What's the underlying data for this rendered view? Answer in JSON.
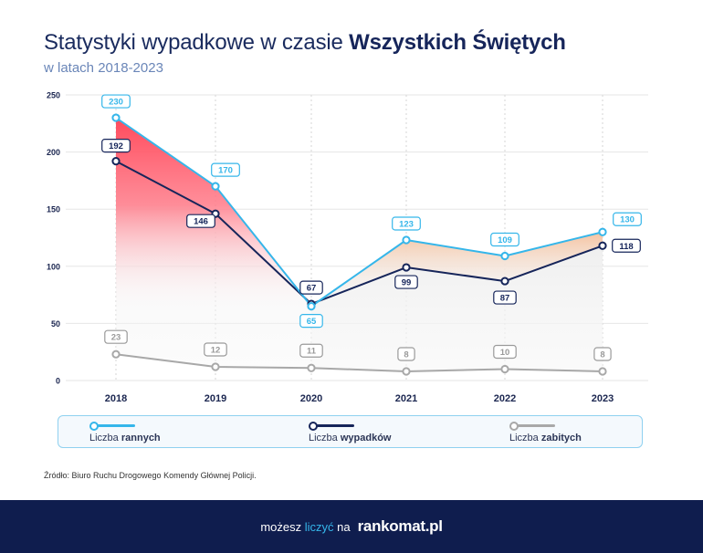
{
  "header": {
    "title_prefix": "Statystyki wypadkowe w czasie ",
    "title_bold": "Wszystkich Świętych",
    "subtitle": "w latach 2018-2023"
  },
  "chart_data": {
    "type": "line",
    "categories": [
      "2018",
      "2019",
      "2020",
      "2021",
      "2022",
      "2023"
    ],
    "ylim": [
      0,
      250
    ],
    "yticks": [
      "0",
      "50",
      "100",
      "150",
      "200",
      "250"
    ],
    "grid": true,
    "series": [
      {
        "name_prefix": "Liczba ",
        "name_bold": "rannych",
        "values": [
          230,
          170,
          65,
          123,
          109,
          130
        ],
        "color": "#35b6ea"
      },
      {
        "name_prefix": "Liczba ",
        "name_bold": "wypadków",
        "values": [
          192,
          146,
          67,
          99,
          87,
          118
        ],
        "color": "#16255a"
      },
      {
        "name_prefix": "Liczba ",
        "name_bold": "zabitych",
        "values": [
          23,
          12,
          11,
          8,
          10,
          8
        ],
        "color": "#a8a8a8"
      }
    ],
    "fill_colors": {
      "increase": "#ff4f60",
      "decrease_soft": "#f7c3a0",
      "area": "#eeeeee"
    },
    "legend_position": "bottom"
  },
  "source_note": "Źródło: Biuro Ruchu Drogowego Komendy Głównej Policji.",
  "footer": {
    "text_prefix": "możesz ",
    "text_accent": "liczyć",
    "text_suffix": " na",
    "brand": "rankomat.pl"
  }
}
